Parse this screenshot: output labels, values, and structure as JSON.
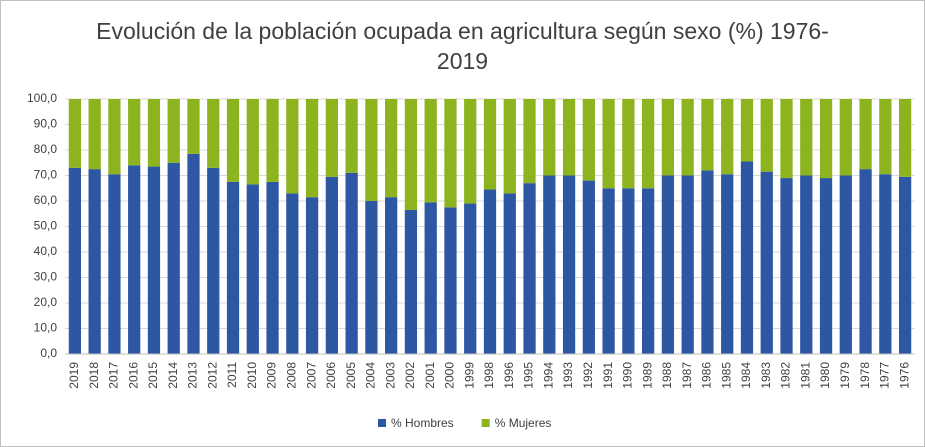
{
  "chart_data": {
    "type": "stacked_bar",
    "title": "Evolución de la población ocupada en agricultura según sexo (%) 1976-2019",
    "categories": [
      "2019",
      "2018",
      "2017",
      "2016",
      "2015",
      "2014",
      "2013",
      "2012",
      "2011",
      "2010",
      "2009",
      "2008",
      "2007",
      "2006",
      "2005",
      "2004",
      "2003",
      "2002",
      "2001",
      "2000",
      "1999",
      "1998",
      "1996",
      "1995",
      "1994",
      "1993",
      "1992",
      "1991",
      "1990",
      "1989",
      "1988",
      "1987",
      "1986",
      "1985",
      "1984",
      "1983",
      "1982",
      "1981",
      "1980",
      "1979",
      "1978",
      "1977",
      "1976"
    ],
    "series": [
      {
        "name": "% Hombres",
        "color": "#2e57a3",
        "values": [
          73,
          72.5,
          70.5,
          74,
          73.5,
          75,
          78.5,
          73,
          67.5,
          66.5,
          67.5,
          63,
          61.5,
          69.5,
          71,
          60,
          61.5,
          56.5,
          59.5,
          57.5,
          59,
          64.5,
          63,
          67,
          70,
          70,
          68,
          65,
          65,
          65,
          70,
          70,
          72,
          70.5,
          75.5,
          71.5,
          69,
          70,
          69,
          70,
          72.5,
          70.5,
          69.5
        ]
      },
      {
        "name": "% Mujeres",
        "color": "#8db41e",
        "values": [
          27,
          27.5,
          29.5,
          26,
          26.5,
          25,
          21.5,
          27,
          32.5,
          33.5,
          32.5,
          37,
          38.5,
          30.5,
          29,
          40,
          38.5,
          43.5,
          40.5,
          42.5,
          41,
          35.5,
          37,
          33,
          30,
          30,
          32,
          35,
          35,
          35,
          30,
          30,
          28,
          29.5,
          24.5,
          28.5,
          31,
          30,
          31,
          30,
          27.5,
          29.5,
          30.5
        ]
      }
    ],
    "ylim": [
      0,
      100
    ],
    "yticks": [
      {
        "value": 0,
        "label": "0,0"
      },
      {
        "value": 10,
        "label": "10,0"
      },
      {
        "value": 20,
        "label": "20,0"
      },
      {
        "value": 30,
        "label": "30,0"
      },
      {
        "value": 40,
        "label": "40,0"
      },
      {
        "value": 50,
        "label": "50,0"
      },
      {
        "value": 60,
        "label": "60,0"
      },
      {
        "value": 70,
        "label": "70,0"
      },
      {
        "value": 80,
        "label": "80,0"
      },
      {
        "value": 90,
        "label": "90,0"
      },
      {
        "value": 100,
        "label": "100,0"
      }
    ],
    "grid": true,
    "legend": "bottom"
  }
}
